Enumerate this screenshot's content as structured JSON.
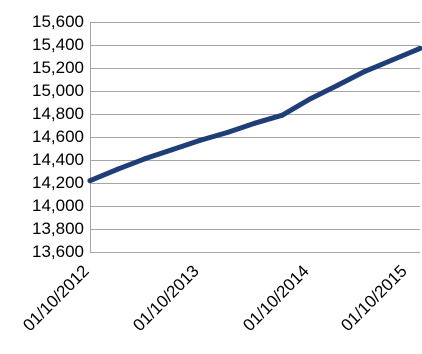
{
  "chart_data": {
    "type": "line",
    "title": "",
    "xlabel": "",
    "ylabel": "",
    "ylim": [
      13600,
      15600
    ],
    "y_ticks": [
      "15,600",
      "15,400",
      "15,200",
      "15,000",
      "14,800",
      "14,600",
      "14,400",
      "14,200",
      "14,000",
      "13,800",
      "13,600"
    ],
    "x_ticks": [
      "01/10/2012",
      "01/10/2013",
      "01/10/2014",
      "01/10/2015"
    ],
    "grid": "horizontal",
    "legend": "none",
    "series": [
      {
        "color": "#1f3e78",
        "x": [
          "2012-10-01",
          "2013-01-01",
          "2013-04-01",
          "2013-07-01",
          "2013-10-01",
          "2014-01-01",
          "2014-04-01",
          "2014-07-01",
          "2014-10-01",
          "2015-01-01",
          "2015-04-01",
          "2015-07-01",
          "2015-10-01"
        ],
        "values": [
          14220,
          14320,
          14410,
          14490,
          14570,
          14640,
          14720,
          14790,
          14930,
          15050,
          15170,
          15270,
          15370
        ]
      }
    ]
  }
}
